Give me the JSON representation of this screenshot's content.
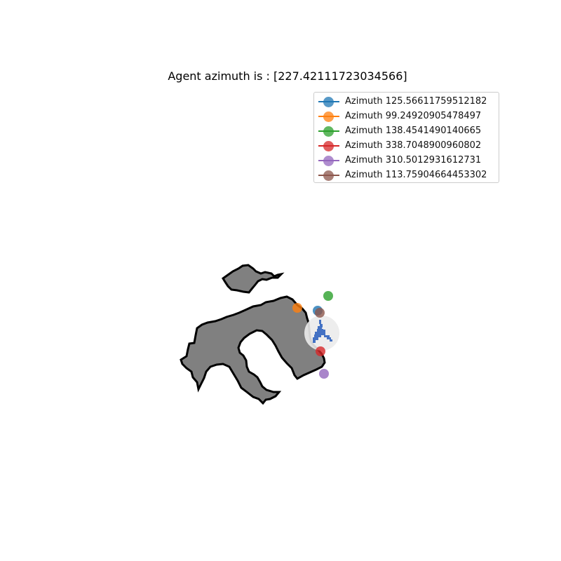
{
  "title": "Agent azimuth is : [227.42111723034566]",
  "chart_data": {
    "type": "scatter",
    "title": "Agent azimuth is : [227.42111723034566]",
    "xlabel": "",
    "ylabel": "",
    "axes_visible": false,
    "grid": false,
    "legend_placement": "top-right",
    "agent_azimuth": 227.42111723034566,
    "agent_color": "#4472c4",
    "map_fill_color": "#808080",
    "map_border_color": "#000000",
    "series": [
      {
        "name": "Azimuth 125.56611759512182",
        "color": "#1f77b4",
        "x": 453,
        "y": 443
      },
      {
        "name": "Azimuth 99.24920905478497",
        "color": "#ff7f0e",
        "x": 424,
        "y": 439
      },
      {
        "name": "Azimuth 138.4541490140665",
        "color": "#2ca02c",
        "x": 468,
        "y": 422
      },
      {
        "name": "Azimuth 338.7048900960802",
        "color": "#d62728",
        "x": 457,
        "y": 501
      },
      {
        "name": "Azimuth 310.5012931612731",
        "color": "#9467bd",
        "x": 462,
        "y": 533
      },
      {
        "name": "Azimuth 113.75904664453302",
        "color": "#8c564b",
        "x": 456,
        "y": 446
      }
    ]
  }
}
